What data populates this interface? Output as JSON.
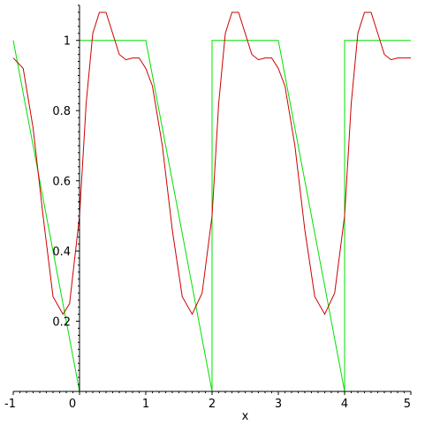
{
  "chart_data": {
    "type": "line",
    "title": "",
    "xlabel": "x",
    "ylabel": "",
    "xlim": [
      -1,
      5
    ],
    "ylim": [
      0,
      1.1
    ],
    "grid": false,
    "legend": "none",
    "x_ticks": [
      {
        "value": -1,
        "label": "-1"
      },
      {
        "value": 0,
        "label": "0"
      },
      {
        "value": 1,
        "label": "1"
      },
      {
        "value": 2,
        "label": "2"
      },
      {
        "value": 3,
        "label": "3"
      },
      {
        "value": 4,
        "label": "4"
      },
      {
        "value": 5,
        "label": "5"
      }
    ],
    "y_ticks": [
      {
        "value": 0.2,
        "label": "0.2"
      },
      {
        "value": 0.4,
        "label": "0.4"
      },
      {
        "value": 0.6,
        "label": "0.6"
      },
      {
        "value": 0.8,
        "label": "0.8"
      },
      {
        "value": 1,
        "label": "1"
      }
    ],
    "series": [
      {
        "color": "#00e000",
        "x": [
          -1,
          0,
          0,
          1,
          2,
          2,
          3,
          4,
          4,
          5
        ],
        "y": [
          1,
          0,
          1,
          1,
          0,
          1,
          1,
          0,
          1,
          1
        ]
      },
      {
        "color": "#cc0000",
        "x": [
          -1,
          -0.85,
          -0.7,
          -0.55,
          -0.4,
          -0.25,
          -0.15,
          0,
          0.1,
          0.2,
          0.3,
          0.4,
          0.5,
          0.6,
          0.7,
          0.8,
          0.9,
          1.0,
          1.1,
          1.25,
          1.4,
          1.55,
          1.7,
          1.85,
          2.0,
          2.1,
          2.2,
          2.3,
          2.4,
          2.5,
          2.6,
          2.7,
          2.8,
          2.9,
          3.0,
          3.1,
          3.25,
          3.4,
          3.55,
          3.7,
          3.85,
          4.0,
          4.1,
          4.2,
          4.3,
          4.4,
          4.5,
          4.6,
          4.7,
          4.8,
          4.9,
          5.0
        ],
        "y": [
          0.95,
          0.92,
          0.75,
          0.5,
          0.27,
          0.22,
          0.25,
          0.5,
          0.82,
          1.02,
          1.08,
          1.08,
          1.02,
          0.96,
          0.945,
          0.95,
          0.95,
          0.92,
          0.87,
          0.7,
          0.46,
          0.27,
          0.22,
          0.28,
          0.5,
          0.82,
          1.02,
          1.08,
          1.08,
          1.02,
          0.96,
          0.945,
          0.95,
          0.95,
          0.92,
          0.87,
          0.7,
          0.46,
          0.27,
          0.22,
          0.28,
          0.5,
          0.82,
          1.02,
          1.08,
          1.08,
          1.02,
          0.96,
          0.945,
          0.95,
          0.95,
          0.95
        ]
      }
    ]
  }
}
